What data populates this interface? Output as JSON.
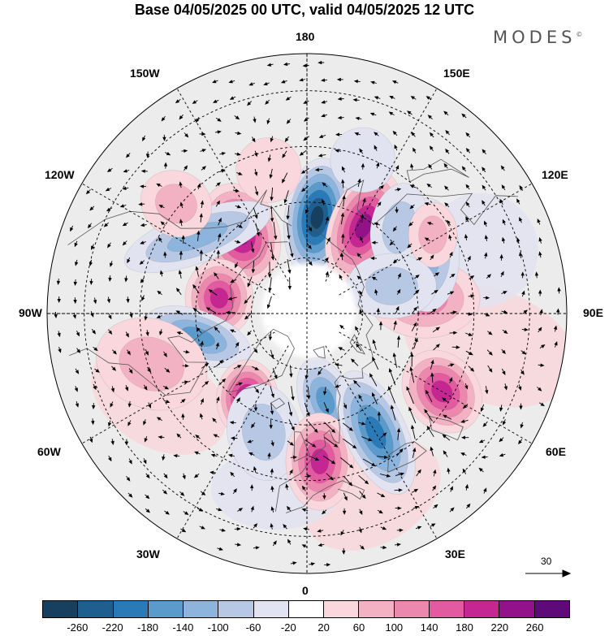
{
  "title": "Base 04/05/2025 00 UTC, valid 04/05/2025 12 UTC",
  "brand": "MODES",
  "brand_mark": "©",
  "lon_labels": {
    "top": "180",
    "bottom": "0",
    "left": "90W",
    "right": "90E",
    "upper_left_1": "150W",
    "upper_left_2": "120W",
    "upper_right_1": "150E",
    "upper_right_2": "120E",
    "lower_left_1": "60W",
    "lower_left_2": "30W",
    "lower_right_1": "60E",
    "lower_right_2": "30E"
  },
  "reference_vector": "30",
  "colorbar": {
    "colors": [
      "#173f5f",
      "#1f5f8f",
      "#2b7ab8",
      "#5b9bcc",
      "#8db4dc",
      "#b7c8e4",
      "#e2e3f1",
      "#ffffff",
      "#f9d7dc",
      "#f3b2c4",
      "#ec88ad",
      "#e25aa0",
      "#c52792",
      "#93128a",
      "#5e0a79"
    ],
    "labels": [
      "-260",
      "-220",
      "-180",
      "-140",
      "-100",
      "-60",
      "-20",
      "20",
      "60",
      "100",
      "140",
      "180",
      "220",
      "260"
    ]
  },
  "anomalies": [
    {
      "lat": 62,
      "lon": -140,
      "value": 230,
      "rx": 48,
      "ry": 64,
      "rot": -20
    },
    {
      "lat": 64,
      "lon": 174,
      "value": -260,
      "rx": 40,
      "ry": 74,
      "rot": 8
    },
    {
      "lat": 62,
      "lon": 147,
      "value": 250,
      "rx": 42,
      "ry": 72,
      "rot": 22
    },
    {
      "lat": 54,
      "lon": -125,
      "value": -120,
      "rx": 32,
      "ry": 95,
      "rot": 70
    },
    {
      "lat": 66,
      "lon": -100,
      "value": 210,
      "rx": 42,
      "ry": 48,
      "rot": 0
    },
    {
      "lat": 60,
      "lon": -78,
      "value": -170,
      "rx": 68,
      "ry": 32,
      "rot": 20
    },
    {
      "lat": 46,
      "lon": -72,
      "value": 60,
      "rx": 70,
      "ry": 55,
      "rot": 20
    },
    {
      "lat": 62,
      "lon": -35,
      "value": 220,
      "rx": 38,
      "ry": 48,
      "rot": 0
    },
    {
      "lat": 56,
      "lon": -20,
      "value": -70,
      "rx": 45,
      "ry": 60,
      "rot": -10
    },
    {
      "lat": 66,
      "lon": 12,
      "value": -140,
      "rx": 32,
      "ry": 55,
      "rot": -20
    },
    {
      "lat": 50,
      "lon": 5,
      "value": 180,
      "rx": 42,
      "ry": 60,
      "rot": 0
    },
    {
      "lat": 53,
      "lon": 30,
      "value": -200,
      "rx": 38,
      "ry": 82,
      "rot": -25
    },
    {
      "lat": 48,
      "lon": 60,
      "value": 200,
      "rx": 45,
      "ry": 55,
      "rot": -40
    },
    {
      "lat": 58,
      "lon": 97,
      "value": 100,
      "rx": 68,
      "ry": 48,
      "rot": 0
    },
    {
      "lat": 54,
      "lon": 116,
      "value": -100,
      "rx": 40,
      "ry": 70,
      "rot": 0
    },
    {
      "lat": 56,
      "lon": 133,
      "value": -90,
      "rx": 35,
      "ry": 55,
      "rot": 10
    },
    {
      "lat": 50,
      "lon": 122,
      "value": 60,
      "rx": 30,
      "ry": 40,
      "rot": 0
    },
    {
      "lat": 66,
      "lon": 108,
      "value": -60,
      "rx": 55,
      "ry": 40,
      "rot": 0
    },
    {
      "lat": 44,
      "lon": -130,
      "value": 60,
      "rx": 45,
      "ry": 40,
      "rot": 30
    },
    {
      "lat": 50,
      "lon": -165,
      "value": 50,
      "rx": 40,
      "ry": 40,
      "rot": 0
    },
    {
      "lat": 46,
      "lon": 160,
      "value": -50,
      "rx": 40,
      "ry": 40,
      "rot": 0
    }
  ]
}
